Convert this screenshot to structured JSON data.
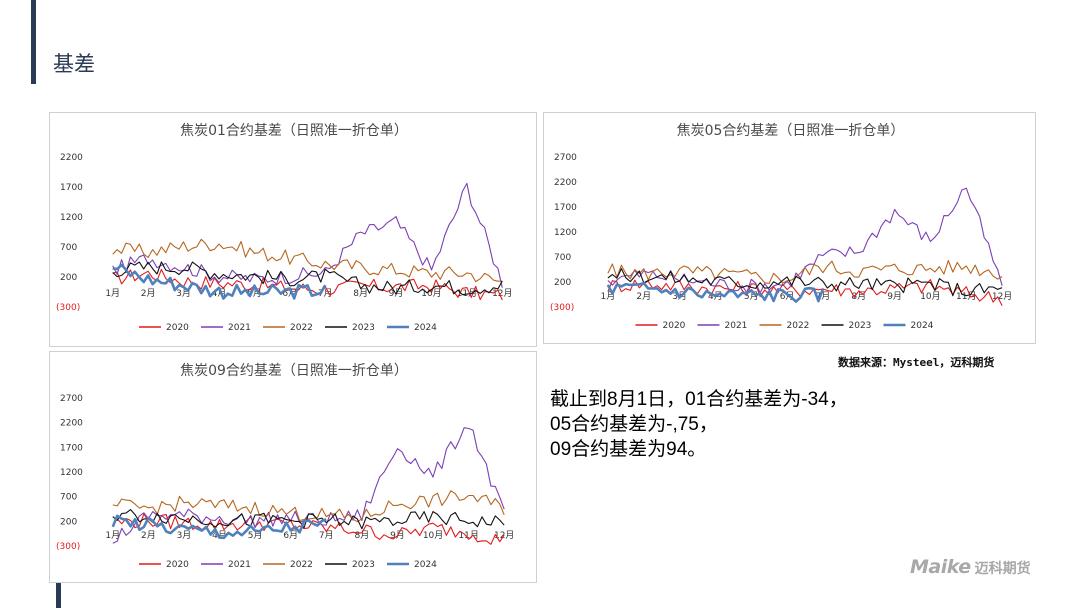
{
  "page": {
    "title": "基差"
  },
  "source_note": "数据来源：Mysteel，迈科期货",
  "summary_lines": [
    "截止到8月1日，01合约基差为-34，",
    "05合约基差为-,75，",
    "09合约基差为94。"
  ],
  "logo": {
    "latin": "Maike",
    "chinese": "迈科期货"
  },
  "colors": {
    "2020": "#e31a1c",
    "2021": "#7b3fb5",
    "2022": "#b5661f",
    "2023": "#111111",
    "2024": "#4f81bd",
    "negative_label": "#e31a1c",
    "title": "#4a4a4a"
  },
  "chart_data": [
    {
      "type": "line",
      "title": "焦炭01合约基差（日照准一折仓单）",
      "yticks": [
        "2200",
        "1700",
        "1200",
        "700",
        "200",
        "(300)"
      ],
      "ylim": [
        -300,
        2200
      ],
      "x_categories": [
        "1月",
        "2月",
        "3月",
        "4月",
        "5月",
        "6月",
        "7月",
        "8月",
        "9月",
        "10月",
        "11月",
        "12月"
      ],
      "series": [
        {
          "name": "2020",
          "values": [
            150,
            250,
            120,
            80,
            60,
            0,
            -20,
            30,
            20,
            40,
            -80,
            -120
          ]
        },
        {
          "name": "2021",
          "values": [
            300,
            500,
            350,
            200,
            150,
            200,
            250,
            900,
            1100,
            300,
            1700,
            100
          ]
        },
        {
          "name": "2022",
          "values": [
            650,
            600,
            700,
            750,
            600,
            500,
            400,
            350,
            300,
            250,
            250,
            100
          ]
        },
        {
          "name": "2023",
          "values": [
            300,
            350,
            350,
            250,
            200,
            150,
            200,
            50,
            0,
            50,
            0,
            50
          ]
        },
        {
          "name": "2024",
          "values": [
            350,
            150,
            50,
            -50,
            -80,
            -60,
            -40,
            null,
            null,
            null,
            null,
            null
          ]
        }
      ]
    },
    {
      "type": "line",
      "title": "焦炭05合约基差（日照准一折仓单）",
      "yticks": [
        "2700",
        "2200",
        "1700",
        "1200",
        "700",
        "200",
        "(300)"
      ],
      "ylim": [
        -300,
        2700
      ],
      "x_categories": [
        "1月",
        "2月",
        "3月",
        "4月",
        "5月",
        "6月",
        "7月",
        "8月",
        "9月",
        "10月",
        "11月",
        "12月"
      ],
      "series": [
        {
          "name": "2020",
          "values": [
            100,
            150,
            100,
            50,
            50,
            0,
            50,
            0,
            50,
            100,
            -50,
            -150
          ]
        },
        {
          "name": "2021",
          "values": [
            200,
            350,
            250,
            150,
            100,
            150,
            700,
            800,
            1600,
            1000,
            2100,
            100
          ]
        },
        {
          "name": "2022",
          "values": [
            400,
            350,
            400,
            350,
            300,
            250,
            500,
            400,
            450,
            450,
            500,
            350
          ]
        },
        {
          "name": "2023",
          "values": [
            300,
            300,
            250,
            200,
            150,
            200,
            150,
            150,
            100,
            150,
            0,
            50
          ]
        },
        {
          "name": "2024",
          "values": [
            50,
            50,
            0,
            -80,
            -80,
            -70,
            -75,
            null,
            null,
            null,
            null,
            null
          ]
        }
      ]
    },
    {
      "type": "line",
      "title": "焦炭09合约基差（日照准一折仓单）",
      "yticks": [
        "2700",
        "2200",
        "1700",
        "1200",
        "700",
        "200",
        "(300)"
      ],
      "ylim": [
        -300,
        2700
      ],
      "x_categories": [
        "1月",
        "2月",
        "3月",
        "4月",
        "5月",
        "6月",
        "7月",
        "8月",
        "9月",
        "10月",
        "11月",
        "12月"
      ],
      "series": [
        {
          "name": "2020",
          "values": [
            150,
            200,
            150,
            100,
            150,
            100,
            50,
            0,
            -100,
            50,
            -50,
            -200
          ]
        },
        {
          "name": "2021",
          "values": [
            -200,
            300,
            300,
            250,
            200,
            250,
            200,
            300,
            1700,
            1100,
            2200,
            300
          ]
        },
        {
          "name": "2022",
          "values": [
            500,
            450,
            550,
            500,
            450,
            350,
            300,
            250,
            550,
            600,
            700,
            450
          ]
        },
        {
          "name": "2023",
          "values": [
            300,
            300,
            250,
            200,
            200,
            200,
            200,
            150,
            200,
            250,
            200,
            150
          ]
        },
        {
          "name": "2024",
          "values": [
            200,
            100,
            0,
            -50,
            -50,
            50,
            100,
            null,
            null,
            null,
            null,
            null
          ]
        }
      ]
    }
  ]
}
